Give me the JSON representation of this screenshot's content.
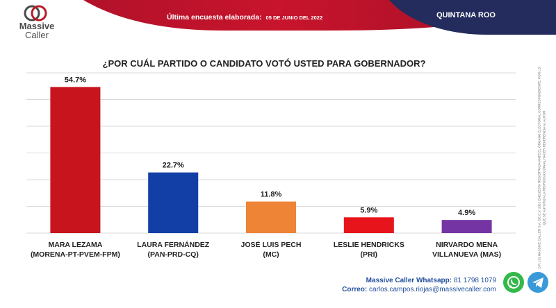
{
  "header": {
    "brand_line1": "Massive",
    "brand_line2": "Caller",
    "survey_label": "Última encuesta elaborada:",
    "survey_date": "05 DE JUNIO DEL 2022",
    "region": "QUINTANA ROO",
    "colors": {
      "red": "#b81a2a",
      "navy": "#232c5c"
    }
  },
  "chart_data": {
    "type": "bar",
    "title": "¿POR CUÁL PARTIDO O CANDIDATO VOTÓ USTED PARA GOBERNADOR?",
    "categories": [
      [
        "MARA LEZAMA",
        "(MORENA-PT-PVEM-FPM)"
      ],
      [
        "LAURA FERNÁNDEZ",
        "(PAN-PRD-CQ)"
      ],
      [
        "JOSÉ LUIS PECH",
        "(MC)"
      ],
      [
        "LESLIE HENDRICKS",
        "(PRI)"
      ],
      [
        "NIRVARDO MENA",
        "VILLANUEVA (MAS)"
      ]
    ],
    "values": [
      54.7,
      22.7,
      11.8,
      5.9,
      4.9
    ],
    "value_labels": [
      "54.7%",
      "22.7%",
      "11.8%",
      "5.9%",
      "4.9%"
    ],
    "colors": [
      "#c8141c",
      "#123fa6",
      "#ee8436",
      "#e8141c",
      "#7534a3"
    ],
    "ylim": [
      0,
      60
    ],
    "grid": true,
    "legend": "none"
  },
  "disclaimer": "D.R. (C) MASSIVE CALLER S.A. DE C.V. 2022 ENCUESTA REGISTRADA ANTE EL ÓRGANO ELECTORAL CORRESPONDIENTE. POR LO QUE SE AUTORIZA LA REPRODUCCIÓN AL HACER REFERENCIA AL AUTOR",
  "footer": {
    "whatsapp_label": "Massive Caller Whatsapp:",
    "whatsapp_number": "81 1798 1079",
    "email_label": "Correo:",
    "email": "carlos.campos.riojas@massivecaller.com",
    "icons": [
      "whatsapp-icon",
      "telegram-icon"
    ]
  }
}
